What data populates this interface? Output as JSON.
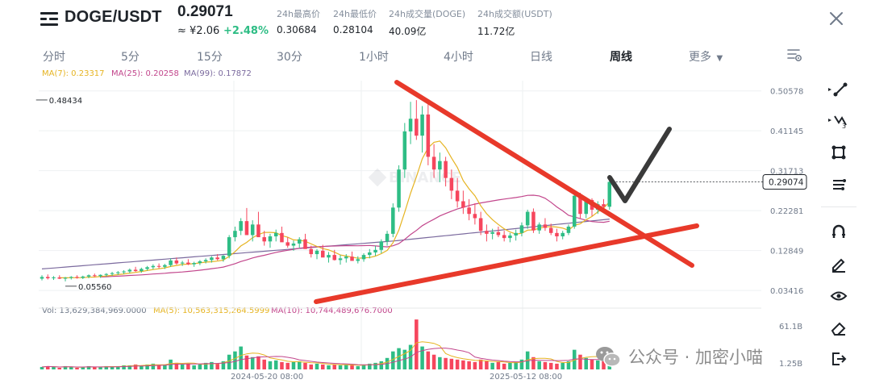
{
  "header": {
    "pair": "DOGE/USDT",
    "last_price": "0.29071",
    "fiat_price": "≈ ¥2.06",
    "change_pct": "+2.48%",
    "stats": [
      {
        "label": "24h最高价",
        "value": "0.30684"
      },
      {
        "label": "24h最低价",
        "value": "0.28104"
      },
      {
        "label": "24h成交量(DOGE)",
        "value": "40.09亿"
      },
      {
        "label": "24h成交额(USDT)",
        "value": "11.72亿"
      }
    ]
  },
  "tabs": [
    {
      "label": "分时",
      "active": false
    },
    {
      "label": "5分",
      "active": false
    },
    {
      "label": "15分",
      "active": false
    },
    {
      "label": "30分",
      "active": false
    },
    {
      "label": "1小时",
      "active": false
    },
    {
      "label": "4小时",
      "active": false
    },
    {
      "label": "日线",
      "active": false
    },
    {
      "label": "周线",
      "active": true
    },
    {
      "label": "更多",
      "active": false
    }
  ],
  "legend": {
    "ma7": "MA(7): 0.23317",
    "ma25": "MA(25): 0.20258",
    "ma99": "MA(99): 0.17872",
    "vol": "Vol: 13,629,384,969.0000",
    "vol_ma5": "MA(5): 10,563,315,264.5999",
    "vol_ma10": "MA(10): 10,744,489,676.7000"
  },
  "colors": {
    "up": "#2ebd85",
    "down": "#f6465d",
    "ma7": "#e6b422",
    "ma25": "#c2468c",
    "ma99": "#7b6a9e",
    "annotation_line": "#e8392a",
    "check_mark": "#3a3a3a"
  },
  "watermark": "公众号 · 加密小喵",
  "icons": [
    "menu-icon",
    "close-icon",
    "chart-settings-icon",
    "trend-line-icon",
    "fib-tool-icon",
    "rectangle-tool-icon",
    "parallel-lines-icon",
    "magnet-icon",
    "pencil-icon",
    "eye-icon",
    "eraser-icon",
    "exit-icon",
    "binance-watermark-icon"
  ],
  "chart_data": {
    "type": "candlestick",
    "timeframe": "周线",
    "y_axis_ticks": [
      "0.50578",
      "0.41145",
      "0.31713",
      "0.22281",
      "0.12849",
      "0.03416"
    ],
    "y_axis_values": [
      0.50578,
      0.41145,
      0.31713,
      0.22281,
      0.12849,
      0.03416
    ],
    "ylim": [
      0.0,
      0.53
    ],
    "x_axis_ticks": [
      "2024-05-20 08:00",
      "2025-05-12 08:00"
    ],
    "current_price_label": "0.29074",
    "current_price": 0.29074,
    "high_annotation": "0.48434",
    "high_value": 0.48434,
    "low_annotation": "0.05560",
    "low_value": 0.0556,
    "volume_axis": {
      "top_label": "61.1B",
      "bottom_label": "1.25B"
    },
    "candles_ohlc": [
      [
        0.062,
        0.07,
        0.058,
        0.066
      ],
      [
        0.066,
        0.072,
        0.06,
        0.063
      ],
      [
        0.063,
        0.068,
        0.059,
        0.065
      ],
      [
        0.065,
        0.07,
        0.061,
        0.062
      ],
      [
        0.062,
        0.066,
        0.0556,
        0.064
      ],
      [
        0.064,
        0.068,
        0.06,
        0.066
      ],
      [
        0.066,
        0.07,
        0.062,
        0.064
      ],
      [
        0.064,
        0.069,
        0.061,
        0.067
      ],
      [
        0.067,
        0.072,
        0.063,
        0.07
      ],
      [
        0.07,
        0.074,
        0.066,
        0.068
      ],
      [
        0.068,
        0.072,
        0.064,
        0.071
      ],
      [
        0.071,
        0.075,
        0.067,
        0.073
      ],
      [
        0.073,
        0.078,
        0.069,
        0.075
      ],
      [
        0.075,
        0.08,
        0.071,
        0.077
      ],
      [
        0.077,
        0.082,
        0.073,
        0.079
      ],
      [
        0.079,
        0.086,
        0.075,
        0.083
      ],
      [
        0.083,
        0.09,
        0.078,
        0.08
      ],
      [
        0.08,
        0.088,
        0.076,
        0.085
      ],
      [
        0.085,
        0.092,
        0.081,
        0.089
      ],
      [
        0.089,
        0.096,
        0.084,
        0.092
      ],
      [
        0.092,
        0.098,
        0.086,
        0.09
      ],
      [
        0.09,
        0.097,
        0.085,
        0.094
      ],
      [
        0.094,
        0.11,
        0.09,
        0.105
      ],
      [
        0.105,
        0.112,
        0.095,
        0.098
      ],
      [
        0.098,
        0.104,
        0.092,
        0.1
      ],
      [
        0.1,
        0.108,
        0.094,
        0.096
      ],
      [
        0.096,
        0.102,
        0.09,
        0.099
      ],
      [
        0.099,
        0.106,
        0.094,
        0.103
      ],
      [
        0.103,
        0.11,
        0.098,
        0.106
      ],
      [
        0.106,
        0.115,
        0.1,
        0.112
      ],
      [
        0.112,
        0.12,
        0.105,
        0.108
      ],
      [
        0.108,
        0.118,
        0.102,
        0.116
      ],
      [
        0.116,
        0.165,
        0.11,
        0.16
      ],
      [
        0.16,
        0.185,
        0.15,
        0.175
      ],
      [
        0.175,
        0.205,
        0.165,
        0.198
      ],
      [
        0.198,
        0.229,
        0.18,
        0.165
      ],
      [
        0.165,
        0.2,
        0.15,
        0.19
      ],
      [
        0.19,
        0.22,
        0.17,
        0.16
      ],
      [
        0.16,
        0.175,
        0.14,
        0.15
      ],
      [
        0.15,
        0.168,
        0.135,
        0.162
      ],
      [
        0.162,
        0.178,
        0.15,
        0.17
      ],
      [
        0.17,
        0.185,
        0.158,
        0.148
      ],
      [
        0.148,
        0.16,
        0.135,
        0.14
      ],
      [
        0.14,
        0.152,
        0.128,
        0.145
      ],
      [
        0.145,
        0.16,
        0.135,
        0.155
      ],
      [
        0.155,
        0.168,
        0.14,
        0.132
      ],
      [
        0.132,
        0.14,
        0.112,
        0.12
      ],
      [
        0.12,
        0.132,
        0.108,
        0.128
      ],
      [
        0.128,
        0.142,
        0.118,
        0.112
      ],
      [
        0.112,
        0.125,
        0.1,
        0.118
      ],
      [
        0.118,
        0.13,
        0.105,
        0.106
      ],
      [
        0.106,
        0.118,
        0.095,
        0.11
      ],
      [
        0.11,
        0.12,
        0.1,
        0.114
      ],
      [
        0.114,
        0.126,
        0.106,
        0.104
      ],
      [
        0.104,
        0.115,
        0.098,
        0.108
      ],
      [
        0.108,
        0.122,
        0.102,
        0.118
      ],
      [
        0.118,
        0.132,
        0.11,
        0.124
      ],
      [
        0.124,
        0.14,
        0.116,
        0.13
      ],
      [
        0.13,
        0.155,
        0.122,
        0.15
      ],
      [
        0.15,
        0.175,
        0.14,
        0.168
      ],
      [
        0.168,
        0.24,
        0.16,
        0.23
      ],
      [
        0.23,
        0.33,
        0.22,
        0.32
      ],
      [
        0.32,
        0.43,
        0.3,
        0.41
      ],
      [
        0.41,
        0.48,
        0.38,
        0.44
      ],
      [
        0.44,
        0.484,
        0.39,
        0.4
      ],
      [
        0.4,
        0.47,
        0.36,
        0.45
      ],
      [
        0.45,
        0.48,
        0.33,
        0.35
      ],
      [
        0.35,
        0.38,
        0.3,
        0.32
      ],
      [
        0.32,
        0.36,
        0.29,
        0.34
      ],
      [
        0.34,
        0.35,
        0.28,
        0.3
      ],
      [
        0.3,
        0.32,
        0.25,
        0.27
      ],
      [
        0.27,
        0.3,
        0.23,
        0.245
      ],
      [
        0.245,
        0.27,
        0.215,
        0.23
      ],
      [
        0.23,
        0.25,
        0.2,
        0.215
      ],
      [
        0.215,
        0.24,
        0.19,
        0.205
      ],
      [
        0.205,
        0.22,
        0.165,
        0.175
      ],
      [
        0.175,
        0.19,
        0.15,
        0.168
      ],
      [
        0.168,
        0.18,
        0.155,
        0.172
      ],
      [
        0.172,
        0.185,
        0.16,
        0.165
      ],
      [
        0.165,
        0.175,
        0.15,
        0.158
      ],
      [
        0.158,
        0.17,
        0.148,
        0.164
      ],
      [
        0.164,
        0.178,
        0.152,
        0.17
      ],
      [
        0.17,
        0.195,
        0.162,
        0.188
      ],
      [
        0.188,
        0.225,
        0.18,
        0.22
      ],
      [
        0.22,
        0.228,
        0.17,
        0.176
      ],
      [
        0.176,
        0.195,
        0.168,
        0.19
      ],
      [
        0.19,
        0.205,
        0.175,
        0.182
      ],
      [
        0.182,
        0.192,
        0.165,
        0.17
      ],
      [
        0.17,
        0.18,
        0.15,
        0.162
      ],
      [
        0.162,
        0.175,
        0.155,
        0.17
      ],
      [
        0.17,
        0.19,
        0.165,
        0.185
      ],
      [
        0.185,
        0.262,
        0.18,
        0.258
      ],
      [
        0.258,
        0.265,
        0.205,
        0.215
      ],
      [
        0.215,
        0.255,
        0.205,
        0.248
      ],
      [
        0.248,
        0.252,
        0.21,
        0.225
      ],
      [
        0.225,
        0.245,
        0.215,
        0.238
      ],
      [
        0.238,
        0.25,
        0.22,
        0.232
      ],
      [
        0.232,
        0.307,
        0.225,
        0.2907
      ]
    ],
    "volumes_billion": [
      3,
      4,
      3,
      2,
      4,
      3,
      2,
      3,
      4,
      3,
      3,
      4,
      3,
      4,
      5,
      5,
      6,
      4,
      6,
      7,
      5,
      6,
      12,
      8,
      6,
      7,
      5,
      6,
      8,
      9,
      7,
      10,
      18,
      22,
      28,
      17,
      15,
      16,
      12,
      10,
      11,
      9,
      8,
      9,
      10,
      8,
      6,
      7,
      6,
      5,
      6,
      5,
      6,
      5,
      4,
      6,
      7,
      8,
      10,
      14,
      22,
      26,
      24,
      30,
      61,
      28,
      22,
      18,
      15,
      14,
      13,
      12,
      11,
      10,
      9,
      12,
      10,
      8,
      9,
      7,
      8,
      9,
      12,
      22,
      15,
      10,
      9,
      8,
      7,
      8,
      10,
      24,
      18,
      14,
      12,
      11,
      10,
      13.6
    ],
    "moving_averages": [
      "MA(7)",
      "MA(25)",
      "MA(99)"
    ],
    "grid": true
  }
}
